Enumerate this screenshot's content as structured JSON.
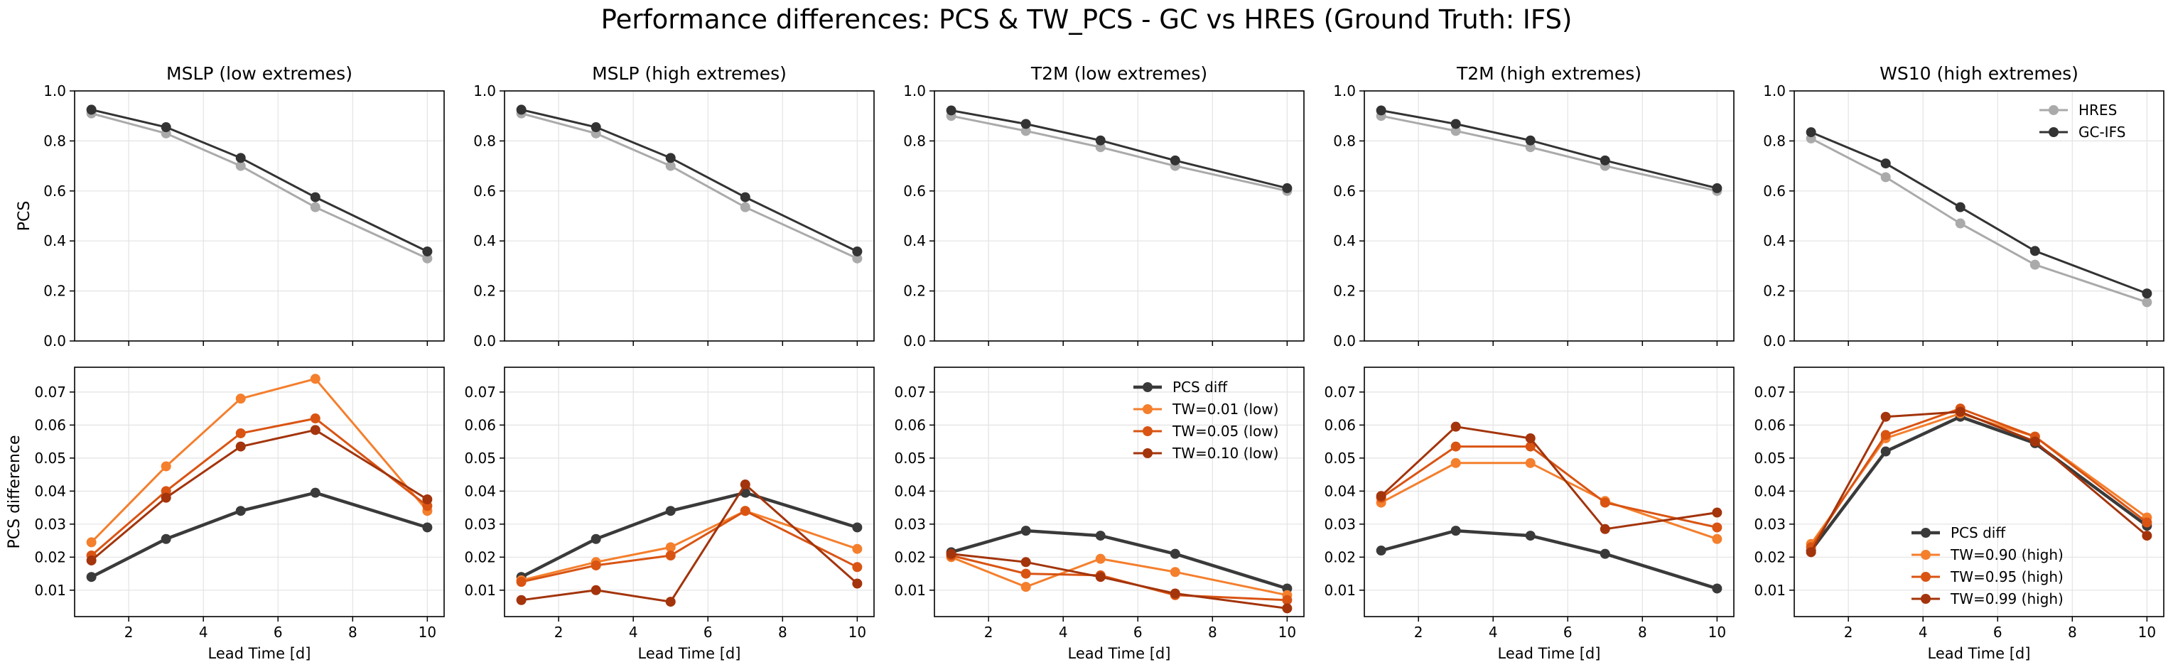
{
  "suptitle": "Performance differences: PCS & TW_PCS - GC vs HRES (Ground Truth: IFS)",
  "colors": {
    "hres": "#aaaaaa",
    "gc_ifs": "#333333",
    "pcs_diff": "#3a3a3a",
    "tw1": "#f47f2d",
    "tw2": "#d95413",
    "tw3": "#a3340b",
    "grid": "#e3e3e3"
  },
  "chart_data": {
    "type": "line",
    "x": [
      1,
      3,
      5,
      7,
      10
    ],
    "xlabel": "Lead Time [d]",
    "xticks": [
      2,
      4,
      6,
      8,
      10
    ],
    "xlim": [
      0.55,
      10.45
    ],
    "row_ylabels": [
      "PCS",
      "PCS difference"
    ],
    "top_ylim": [
      0,
      1
    ],
    "top_yticks": [
      "0.0",
      "0.2",
      "0.4",
      "0.6",
      "0.8",
      "1.0"
    ],
    "bottom_ylim": [
      0.002,
      0.0775
    ],
    "bottom_yticks": [
      "0.01",
      "0.02",
      "0.03",
      "0.04",
      "0.05",
      "0.06",
      "0.07"
    ],
    "grid": true,
    "panels": [
      {
        "title": "MSLP (low extremes)",
        "top_series": [
          {
            "name": "HRES",
            "values": [
              0.91,
              0.83,
              0.7,
              0.535,
              0.33
            ]
          },
          {
            "name": "GC-IFS",
            "values": [
              0.925,
              0.855,
              0.732,
              0.575,
              0.358
            ]
          }
        ],
        "bottom_series": [
          {
            "name": "PCS diff",
            "values": [
              0.014,
              0.0255,
              0.034,
              0.0395,
              0.029
            ]
          },
          {
            "name": "TW=0.01 (low)",
            "values": [
              0.0245,
              0.0475,
              0.068,
              0.074,
              0.034
            ]
          },
          {
            "name": "TW=0.05 (low)",
            "values": [
              0.0205,
              0.04,
              0.0575,
              0.062,
              0.0355
            ]
          },
          {
            "name": "TW=0.10 (low)",
            "values": [
              0.019,
              0.038,
              0.0535,
              0.0585,
              0.0375
            ]
          }
        ]
      },
      {
        "title": "MSLP (high extremes)",
        "top_series": [
          {
            "name": "HRES",
            "values": [
              0.91,
              0.83,
              0.7,
              0.535,
              0.33
            ]
          },
          {
            "name": "GC-IFS",
            "values": [
              0.925,
              0.855,
              0.732,
              0.575,
              0.358
            ]
          }
        ],
        "bottom_series": [
          {
            "name": "PCS diff",
            "values": [
              0.014,
              0.0255,
              0.034,
              0.0395,
              0.029
            ]
          },
          {
            "name": "TW=0.90 (high)",
            "values": [
              0.013,
              0.0185,
              0.023,
              0.034,
              0.0225
            ]
          },
          {
            "name": "TW=0.95 (high)",
            "values": [
              0.0125,
              0.0175,
              0.0205,
              0.034,
              0.017
            ]
          },
          {
            "name": "TW=0.99 (high)",
            "values": [
              0.007,
              0.01,
              0.0065,
              0.042,
              0.012
            ]
          }
        ]
      },
      {
        "title": "T2M (low extremes)",
        "top_series": [
          {
            "name": "HRES",
            "values": [
              0.9,
              0.84,
              0.775,
              0.7,
              0.6
            ]
          },
          {
            "name": "GC-IFS",
            "values": [
              0.922,
              0.868,
              0.802,
              0.722,
              0.611
            ]
          }
        ],
        "bottom_series": [
          {
            "name": "PCS diff",
            "values": [
              0.0215,
              0.028,
              0.0265,
              0.021,
              0.0105
            ]
          },
          {
            "name": "TW=0.01 (low)",
            "values": [
              0.02,
              0.011,
              0.0195,
              0.0155,
              0.0085
            ]
          },
          {
            "name": "TW=0.05 (low)",
            "values": [
              0.0205,
              0.015,
              0.0145,
              0.0085,
              0.007
            ]
          },
          {
            "name": "TW=0.10 (low)",
            "values": [
              0.021,
              0.0185,
              0.014,
              0.009,
              0.0045
            ]
          }
        ],
        "legend": {
          "location": "upper-right",
          "entries": [
            "PCS diff",
            "TW=0.01 (low)",
            "TW=0.05 (low)",
            "TW=0.10 (low)"
          ]
        }
      },
      {
        "title": "T2M (high extremes)",
        "top_series": [
          {
            "name": "HRES",
            "values": [
              0.9,
              0.84,
              0.775,
              0.7,
              0.6
            ]
          },
          {
            "name": "GC-IFS",
            "values": [
              0.922,
              0.868,
              0.802,
              0.722,
              0.611
            ]
          }
        ],
        "bottom_series": [
          {
            "name": "PCS diff",
            "values": [
              0.022,
              0.028,
              0.0265,
              0.021,
              0.0105
            ]
          },
          {
            "name": "TW=0.90 (high)",
            "values": [
              0.0365,
              0.0485,
              0.0485,
              0.037,
              0.0255
            ]
          },
          {
            "name": "TW=0.95 (high)",
            "values": [
              0.038,
              0.0535,
              0.0535,
              0.0365,
              0.029
            ]
          },
          {
            "name": "TW=0.99 (high)",
            "values": [
              0.0385,
              0.0595,
              0.056,
              0.0285,
              0.0335
            ]
          }
        ]
      },
      {
        "title": "WS10 (high extremes)",
        "top_series": [
          {
            "name": "HRES",
            "values": [
              0.81,
              0.655,
              0.47,
              0.305,
              0.155
            ]
          },
          {
            "name": "GC-IFS",
            "values": [
              0.835,
              0.71,
              0.535,
              0.36,
              0.19
            ]
          }
        ],
        "bottom_series": [
          {
            "name": "PCS diff",
            "values": [
              0.022,
              0.052,
              0.0625,
              0.0545,
              0.0295
            ]
          },
          {
            "name": "TW=0.90 (high)",
            "values": [
              0.024,
              0.056,
              0.0635,
              0.0565,
              0.032
            ]
          },
          {
            "name": "TW=0.95 (high)",
            "values": [
              0.023,
              0.057,
              0.065,
              0.0565,
              0.0305
            ]
          },
          {
            "name": "TW=0.99 (high)",
            "values": [
              0.0215,
              0.0625,
              0.064,
              0.055,
              0.0265
            ]
          }
        ],
        "legend": {
          "location": "lower-center",
          "entries": [
            "PCS diff",
            "TW=0.90 (high)",
            "TW=0.95 (high)",
            "TW=0.99 (high)"
          ]
        },
        "top_legend": {
          "location": "upper-right",
          "entries": [
            "HRES",
            "GC-IFS"
          ]
        }
      }
    ]
  }
}
